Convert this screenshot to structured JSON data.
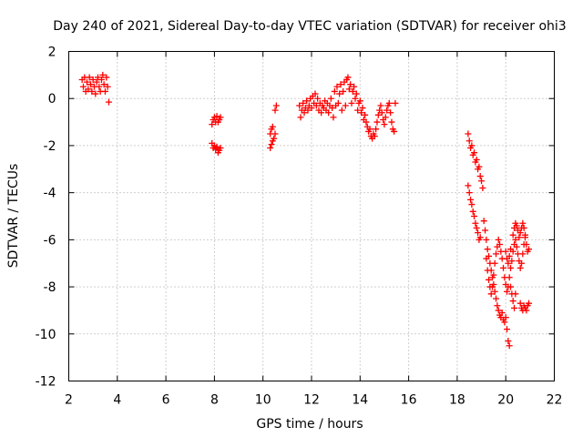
{
  "chart_data": {
    "type": "scatter",
    "title": "Day 240 of 2021, Sidereal Day-to-day VTEC variation (SDTVAR) for receiver ohi3",
    "xlabel": "GPS time / hours",
    "ylabel": "SDTVAR / TECUs",
    "xlim": [
      2,
      22
    ],
    "ylim": [
      -12,
      2
    ],
    "x_ticks": [
      2,
      4,
      6,
      8,
      10,
      12,
      14,
      16,
      18,
      20,
      22
    ],
    "y_ticks": [
      2,
      0,
      -2,
      -4,
      -6,
      -8,
      -10,
      -12
    ],
    "x_tick_labels": [
      "2",
      "4",
      "6",
      "8",
      "10",
      "12",
      "14",
      "16",
      "18",
      "20",
      "22"
    ],
    "y_tick_labels": [
      "2",
      "0",
      "-2",
      "-4",
      "-6",
      "-8",
      "-10",
      "-12"
    ],
    "grid": true,
    "marker": "+",
    "series": [
      {
        "name": "SDTVAR",
        "color": "#ff0000",
        "points": [
          [
            2.55,
            0.8
          ],
          [
            2.6,
            0.5
          ],
          [
            2.65,
            0.9
          ],
          [
            2.7,
            0.3
          ],
          [
            2.75,
            0.7
          ],
          [
            2.8,
            0.4
          ],
          [
            2.85,
            0.9
          ],
          [
            2.9,
            0.6
          ],
          [
            2.95,
            0.3
          ],
          [
            3.0,
            0.8
          ],
          [
            3.05,
            0.5
          ],
          [
            3.1,
            0.2
          ],
          [
            3.15,
            0.7
          ],
          [
            3.2,
            0.9
          ],
          [
            3.25,
            0.5
          ],
          [
            3.3,
            0.3
          ],
          [
            3.35,
            0.8
          ],
          [
            3.4,
            1.0
          ],
          [
            3.45,
            0.6
          ],
          [
            3.5,
            0.3
          ],
          [
            3.55,
            0.9
          ],
          [
            3.6,
            0.5
          ],
          [
            3.65,
            -0.15
          ],
          [
            7.9,
            -1.1
          ],
          [
            7.95,
            -0.9
          ],
          [
            8.0,
            -0.8
          ],
          [
            8.05,
            -1.0
          ],
          [
            8.1,
            -0.75
          ],
          [
            8.15,
            -1.0
          ],
          [
            8.2,
            -0.9
          ],
          [
            8.25,
            -0.8
          ],
          [
            7.9,
            -1.9
          ],
          [
            7.95,
            -2.1
          ],
          [
            8.0,
            -2.0
          ],
          [
            8.05,
            -2.15
          ],
          [
            8.1,
            -2.05
          ],
          [
            8.15,
            -2.3
          ],
          [
            8.2,
            -2.2
          ],
          [
            8.25,
            -2.1
          ],
          [
            10.3,
            -1.5
          ],
          [
            10.35,
            -1.3
          ],
          [
            10.4,
            -1.2
          ],
          [
            10.5,
            -0.5
          ],
          [
            10.55,
            -0.3
          ],
          [
            10.3,
            -2.1
          ],
          [
            10.35,
            -1.95
          ],
          [
            10.4,
            -1.8
          ],
          [
            10.45,
            -1.7
          ],
          [
            10.5,
            -1.5
          ],
          [
            11.5,
            -0.3
          ],
          [
            11.55,
            -0.8
          ],
          [
            11.6,
            -0.5
          ],
          [
            11.65,
            -0.2
          ],
          [
            11.7,
            -0.6
          ],
          [
            11.75,
            -0.4
          ],
          [
            11.8,
            -0.1
          ],
          [
            11.85,
            -0.5
          ],
          [
            11.9,
            -0.3
          ],
          [
            11.95,
            0.0
          ],
          [
            12.0,
            -0.4
          ],
          [
            12.05,
            0.1
          ],
          [
            12.1,
            -0.2
          ],
          [
            12.15,
            0.2
          ],
          [
            12.2,
            -0.3
          ],
          [
            12.25,
            0.0
          ],
          [
            12.3,
            -0.5
          ],
          [
            12.35,
            -0.2
          ],
          [
            12.4,
            -0.6
          ],
          [
            12.45,
            -0.3
          ],
          [
            12.5,
            -0.4
          ],
          [
            12.55,
            -0.1
          ],
          [
            12.6,
            -0.5
          ],
          [
            12.65,
            -0.2
          ],
          [
            12.7,
            -0.6
          ],
          [
            12.75,
            -0.3
          ],
          [
            12.8,
            0.0
          ],
          [
            12.85,
            -0.4
          ],
          [
            12.9,
            -0.8
          ],
          [
            12.95,
            0.3
          ],
          [
            13.0,
            -0.3
          ],
          [
            13.05,
            0.5
          ],
          [
            13.1,
            -0.2
          ],
          [
            13.15,
            0.2
          ],
          [
            13.2,
            0.6
          ],
          [
            13.25,
            -0.5
          ],
          [
            13.3,
            0.3
          ],
          [
            13.35,
            0.7
          ],
          [
            13.4,
            -0.3
          ],
          [
            13.45,
            0.8
          ],
          [
            13.5,
            0.9
          ],
          [
            13.55,
            0.4
          ],
          [
            13.6,
            0.6
          ],
          [
            13.65,
            -0.2
          ],
          [
            13.7,
            0.3
          ],
          [
            13.75,
            0.5
          ],
          [
            13.8,
            0.0
          ],
          [
            13.85,
            0.2
          ],
          [
            13.9,
            -0.5
          ],
          [
            13.95,
            -0.2
          ],
          [
            14.0,
            -0.1
          ],
          [
            14.05,
            -0.6
          ],
          [
            14.1,
            -0.4
          ],
          [
            14.15,
            -0.9
          ],
          [
            14.2,
            -0.7
          ],
          [
            14.25,
            -1.0
          ],
          [
            14.3,
            -1.2
          ],
          [
            14.35,
            -1.4
          ],
          [
            14.4,
            -1.3
          ],
          [
            14.45,
            -1.6
          ],
          [
            14.5,
            -1.7
          ],
          [
            14.55,
            -1.5
          ],
          [
            14.6,
            -1.6
          ],
          [
            14.65,
            -1.3
          ],
          [
            14.7,
            -1.0
          ],
          [
            14.75,
            -0.7
          ],
          [
            14.8,
            -0.5
          ],
          [
            14.85,
            -0.3
          ],
          [
            14.9,
            -0.6
          ],
          [
            14.95,
            -0.9
          ],
          [
            15.0,
            -1.1
          ],
          [
            15.05,
            -0.8
          ],
          [
            15.1,
            -0.5
          ],
          [
            15.15,
            -0.3
          ],
          [
            15.2,
            -0.2
          ],
          [
            15.25,
            -0.6
          ],
          [
            15.3,
            -1.0
          ],
          [
            15.35,
            -1.3
          ],
          [
            15.4,
            -1.4
          ],
          [
            15.45,
            -0.2
          ],
          [
            18.45,
            -1.5
          ],
          [
            18.5,
            -1.8
          ],
          [
            18.55,
            -2.1
          ],
          [
            18.6,
            -2.0
          ],
          [
            18.65,
            -2.4
          ],
          [
            18.7,
            -2.3
          ],
          [
            18.75,
            -2.7
          ],
          [
            18.8,
            -2.6
          ],
          [
            18.85,
            -3.0
          ],
          [
            18.9,
            -2.9
          ],
          [
            18.95,
            -3.3
          ],
          [
            19.0,
            -3.5
          ],
          [
            19.05,
            -3.8
          ],
          [
            18.45,
            -3.7
          ],
          [
            18.5,
            -4.0
          ],
          [
            18.55,
            -4.3
          ],
          [
            18.6,
            -4.5
          ],
          [
            18.65,
            -4.8
          ],
          [
            18.7,
            -5.0
          ],
          [
            18.75,
            -5.3
          ],
          [
            18.8,
            -5.5
          ],
          [
            18.85,
            -5.7
          ],
          [
            18.9,
            -6.0
          ],
          [
            18.95,
            -5.9
          ],
          [
            19.1,
            -5.2
          ],
          [
            19.15,
            -5.6
          ],
          [
            19.2,
            -6.0
          ],
          [
            19.25,
            -6.4
          ],
          [
            19.3,
            -6.7
          ],
          [
            19.35,
            -7.0
          ],
          [
            19.4,
            -7.3
          ],
          [
            19.45,
            -7.6
          ],
          [
            19.5,
            -7.9
          ],
          [
            19.55,
            -8.2
          ],
          [
            19.6,
            -8.5
          ],
          [
            19.65,
            -8.8
          ],
          [
            19.7,
            -9.0
          ],
          [
            19.75,
            -9.2
          ],
          [
            19.8,
            -9.3
          ],
          [
            19.85,
            -9.1
          ],
          [
            19.9,
            -9.4
          ],
          [
            19.95,
            -9.5
          ],
          [
            20.0,
            -9.3
          ],
          [
            20.05,
            -9.8
          ],
          [
            20.1,
            -10.3
          ],
          [
            20.15,
            -10.5
          ],
          [
            19.2,
            -6.8
          ],
          [
            19.25,
            -7.3
          ],
          [
            19.3,
            -7.7
          ],
          [
            19.35,
            -8.0
          ],
          [
            19.4,
            -8.3
          ],
          [
            19.45,
            -8.0
          ],
          [
            19.5,
            -7.5
          ],
          [
            19.55,
            -7.0
          ],
          [
            19.6,
            -6.6
          ],
          [
            19.65,
            -6.3
          ],
          [
            19.7,
            -6.0
          ],
          [
            19.75,
            -6.2
          ],
          [
            19.8,
            -6.5
          ],
          [
            19.85,
            -6.8
          ],
          [
            19.9,
            -7.2
          ],
          [
            19.95,
            -7.6
          ],
          [
            20.0,
            -7.9
          ],
          [
            20.05,
            -8.2
          ],
          [
            20.1,
            -8.0
          ],
          [
            20.15,
            -7.6
          ],
          [
            20.2,
            -7.2
          ],
          [
            20.25,
            -6.9
          ],
          [
            20.3,
            -6.5
          ],
          [
            20.35,
            -6.2
          ],
          [
            20.4,
            -6.0
          ],
          [
            20.45,
            -6.3
          ],
          [
            20.5,
            -6.6
          ],
          [
            20.55,
            -6.9
          ],
          [
            20.6,
            -7.2
          ],
          [
            20.65,
            -7.0
          ],
          [
            20.7,
            -6.6
          ],
          [
            20.75,
            -6.2
          ],
          [
            20.8,
            -5.9
          ],
          [
            20.85,
            -6.2
          ],
          [
            20.9,
            -6.5
          ],
          [
            20.95,
            -6.4
          ],
          [
            20.3,
            -5.8
          ],
          [
            20.35,
            -5.5
          ],
          [
            20.4,
            -5.3
          ],
          [
            20.45,
            -5.4
          ],
          [
            20.5,
            -5.6
          ],
          [
            20.55,
            -5.9
          ],
          [
            20.6,
            -5.7
          ],
          [
            20.65,
            -5.5
          ],
          [
            20.7,
            -5.3
          ],
          [
            20.75,
            -5.5
          ],
          [
            20.8,
            -5.8
          ],
          [
            20.0,
            -6.5
          ],
          [
            20.05,
            -6.8
          ],
          [
            20.1,
            -7.0
          ],
          [
            20.15,
            -6.7
          ],
          [
            20.2,
            -6.4
          ],
          [
            20.2,
            -8.0
          ],
          [
            20.25,
            -8.3
          ],
          [
            20.3,
            -8.6
          ],
          [
            20.35,
            -8.9
          ],
          [
            20.4,
            -8.3
          ],
          [
            20.6,
            -8.7
          ],
          [
            20.65,
            -8.9
          ],
          [
            20.7,
            -9.0
          ],
          [
            20.75,
            -8.8
          ],
          [
            20.8,
            -8.9
          ],
          [
            20.85,
            -9.0
          ],
          [
            20.9,
            -8.8
          ],
          [
            20.95,
            -8.7
          ]
        ]
      }
    ]
  }
}
